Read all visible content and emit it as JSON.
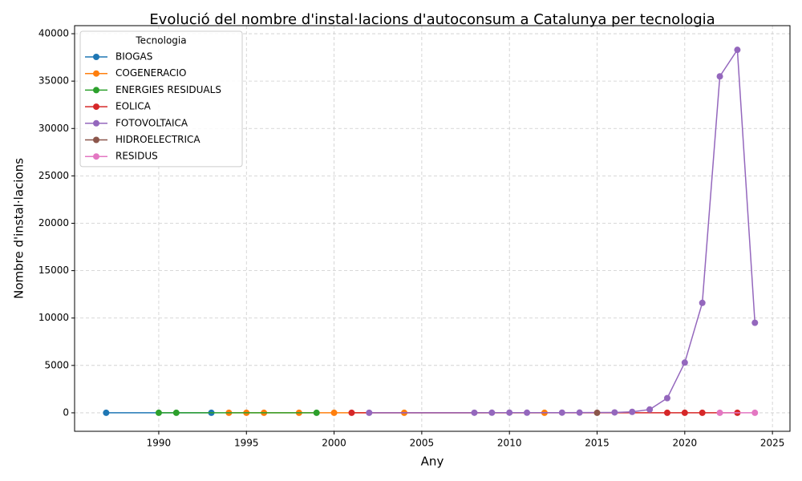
{
  "chart_data": {
    "type": "line",
    "title": "Evolució del nombre d'instal·lacions d'autoconsum a Catalunya per tecnologia",
    "x_label": "Any",
    "y_label": "Nombre d'instal·lacions",
    "legend_title": "Tecnologia",
    "legend": "upper left",
    "grid": true,
    "xlim": [
      1985.2,
      2026
    ],
    "ylim": [
      -1950,
      40850
    ],
    "xticks": [
      1990,
      1995,
      2000,
      2005,
      2010,
      2015,
      2020,
      2025
    ],
    "yticks": [
      0,
      5000,
      10000,
      15000,
      20000,
      25000,
      30000,
      35000,
      40000
    ],
    "series": [
      {
        "name": "BIOGAS",
        "color": "#1f77b4",
        "x": [
          1987,
          1993
        ],
        "values": [
          1,
          1
        ]
      },
      {
        "name": "COGENERACIO",
        "color": "#ff7f0e",
        "x": [
          1994,
          1995,
          1996,
          1998,
          2000,
          2004,
          2012
        ],
        "values": [
          1,
          1,
          1,
          1,
          1,
          1,
          1
        ]
      },
      {
        "name": "ENERGIES RESIDUALS",
        "color": "#2ca02c",
        "x": [
          1990,
          1991,
          1999
        ],
        "values": [
          1,
          1,
          1
        ]
      },
      {
        "name": "EOLICA",
        "color": "#d62728",
        "x": [
          2001,
          2019,
          2020,
          2021,
          2023
        ],
        "values": [
          1,
          3,
          2,
          2,
          1
        ]
      },
      {
        "name": "FOTOVOLTAICA",
        "color": "#9467bd",
        "x": [
          2002,
          2008,
          2009,
          2010,
          2011,
          2013,
          2014,
          2016,
          2017,
          2018,
          2019,
          2020,
          2021,
          2022,
          2023,
          2024
        ],
        "values": [
          5,
          10,
          15,
          20,
          15,
          20,
          25,
          40,
          100,
          350,
          1550,
          5300,
          11600,
          35500,
          38300,
          9500
        ]
      },
      {
        "name": "HIDROELECTRICA",
        "color": "#8c564b",
        "x": [
          2015
        ],
        "values": [
          1
        ]
      },
      {
        "name": "RESIDUS",
        "color": "#e377c2",
        "x": [
          2022,
          2024
        ],
        "values": [
          1,
          1
        ]
      }
    ]
  }
}
